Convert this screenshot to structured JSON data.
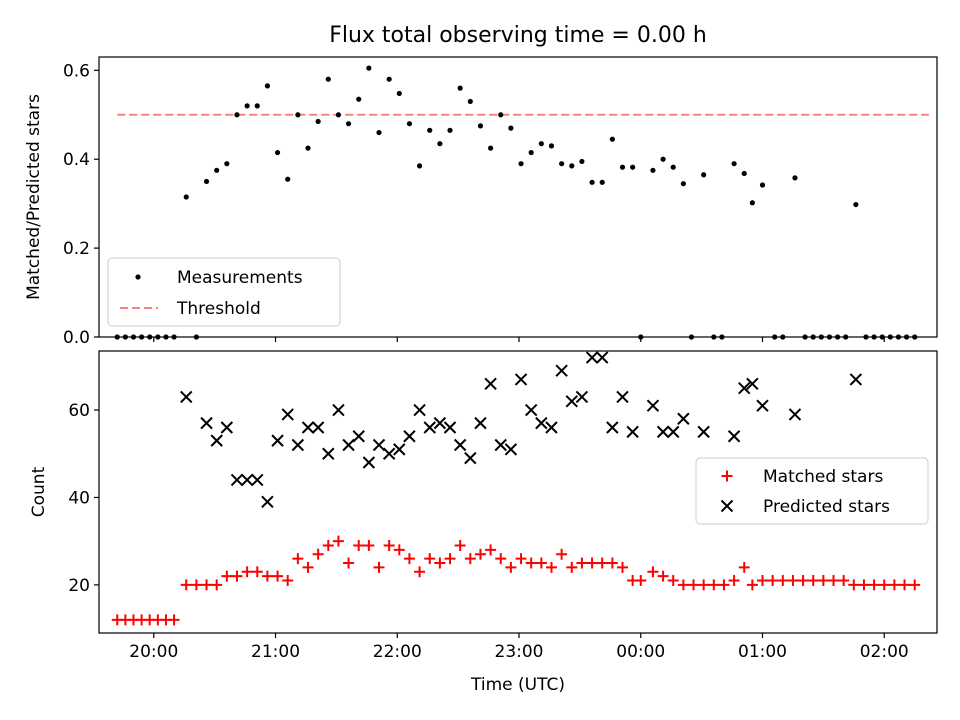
{
  "title": "Flux total observing time = 0.00 h",
  "chart_data": [
    {
      "type": "scatter",
      "ylabel": "Matched/Predicted stars",
      "ylim": [
        0,
        0.63
      ],
      "yticks": [
        0.0,
        0.2,
        0.4,
        0.6
      ],
      "ytick_labels": [
        "0.0",
        "0.2",
        "0.4",
        "0.6"
      ],
      "xlim": [
        "19:33",
        "02:26"
      ],
      "legend": {
        "position": "lower-left",
        "entries": [
          "Measurements",
          "Threshold"
        ]
      },
      "threshold": {
        "name": "Threshold",
        "value": 0.5,
        "x_range": [
          "19:42",
          "02:22"
        ],
        "color": "#ff7f7f",
        "style": "dashed"
      },
      "series": [
        {
          "name": "Measurements",
          "color": "#000000",
          "marker": "dot",
          "points": [
            [
              "19:42",
              0.0
            ],
            [
              "19:46",
              0.0
            ],
            [
              "19:50",
              0.0
            ],
            [
              "19:54",
              0.0
            ],
            [
              "19:58",
              0.0
            ],
            [
              "20:02",
              0.0
            ],
            [
              "20:06",
              0.0
            ],
            [
              "20:10",
              0.0
            ],
            [
              "20:16",
              0.315
            ],
            [
              "20:21",
              0.0
            ],
            [
              "20:26",
              0.35
            ],
            [
              "20:31",
              0.375
            ],
            [
              "20:36",
              0.39
            ],
            [
              "20:41",
              0.5
            ],
            [
              "20:46",
              0.52
            ],
            [
              "20:51",
              0.52
            ],
            [
              "20:56",
              0.565
            ],
            [
              "21:01",
              0.415
            ],
            [
              "21:06",
              0.355
            ],
            [
              "21:11",
              0.5
            ],
            [
              "21:16",
              0.425
            ],
            [
              "21:21",
              0.485
            ],
            [
              "21:26",
              0.58
            ],
            [
              "21:31",
              0.5
            ],
            [
              "21:36",
              0.48
            ],
            [
              "21:41",
              0.535
            ],
            [
              "21:46",
              0.605
            ],
            [
              "21:51",
              0.46
            ],
            [
              "21:56",
              0.58
            ],
            [
              "22:01",
              0.548
            ],
            [
              "22:06",
              0.48
            ],
            [
              "22:11",
              0.385
            ],
            [
              "22:16",
              0.465
            ],
            [
              "22:21",
              0.435
            ],
            [
              "22:26",
              0.465
            ],
            [
              "22:31",
              0.56
            ],
            [
              "22:36",
              0.53
            ],
            [
              "22:41",
              0.475
            ],
            [
              "22:46",
              0.425
            ],
            [
              "22:51",
              0.5
            ],
            [
              "22:56",
              0.47
            ],
            [
              "23:01",
              0.39
            ],
            [
              "23:06",
              0.415
            ],
            [
              "23:11",
              0.435
            ],
            [
              "23:16",
              0.43
            ],
            [
              "23:21",
              0.39
            ],
            [
              "23:26",
              0.385
            ],
            [
              "23:31",
              0.395
            ],
            [
              "23:36",
              0.348
            ],
            [
              "23:41",
              0.348
            ],
            [
              "23:46",
              0.445
            ],
            [
              "23:51",
              0.382
            ],
            [
              "23:56",
              0.382
            ],
            [
              "00:00",
              0.0
            ],
            [
              "00:06",
              0.375
            ],
            [
              "00:11",
              0.4
            ],
            [
              "00:16",
              0.382
            ],
            [
              "00:21",
              0.345
            ],
            [
              "00:25",
              0.0
            ],
            [
              "00:31",
              0.365
            ],
            [
              "00:36",
              0.0
            ],
            [
              "00:40",
              0.0
            ],
            [
              "00:46",
              0.39
            ],
            [
              "00:51",
              0.368
            ],
            [
              "00:55",
              0.302
            ],
            [
              "01:00",
              0.342
            ],
            [
              "01:06",
              0.0
            ],
            [
              "01:10",
              0.0
            ],
            [
              "01:16",
              0.358
            ],
            [
              "01:21",
              0.0
            ],
            [
              "01:25",
              0.0
            ],
            [
              "01:29",
              0.0
            ],
            [
              "01:33",
              0.0
            ],
            [
              "01:37",
              0.0
            ],
            [
              "01:41",
              0.0
            ],
            [
              "01:46",
              0.298
            ],
            [
              "01:51",
              0.0
            ],
            [
              "01:55",
              0.0
            ],
            [
              "01:59",
              0.0
            ],
            [
              "02:03",
              0.0
            ],
            [
              "02:07",
              0.0
            ],
            [
              "02:11",
              0.0
            ],
            [
              "02:15",
              0.0
            ]
          ]
        }
      ]
    },
    {
      "type": "scatter",
      "xlabel": "Time (UTC)",
      "ylabel": "Count",
      "ylim": [
        9,
        73.5
      ],
      "yticks": [
        20,
        40,
        60
      ],
      "ytick_labels": [
        "20",
        "40",
        "60"
      ],
      "xlim": [
        "19:33",
        "02:26"
      ],
      "xticks": [
        "20:00",
        "21:00",
        "22:00",
        "23:00",
        "00:00",
        "01:00",
        "02:00"
      ],
      "xtick_labels": [
        "20:00",
        "21:00",
        "22:00",
        "23:00",
        "00:00",
        "01:00",
        "02:00"
      ],
      "legend": {
        "position": "right",
        "entries": [
          "Matched stars",
          "Predicted stars"
        ]
      },
      "series": [
        {
          "name": "Matched stars",
          "color": "#ff0000",
          "marker": "plus",
          "points": [
            [
              "19:42",
              12
            ],
            [
              "19:46",
              12
            ],
            [
              "19:50",
              12
            ],
            [
              "19:54",
              12
            ],
            [
              "19:58",
              12
            ],
            [
              "20:02",
              12
            ],
            [
              "20:06",
              12
            ],
            [
              "20:10",
              12
            ],
            [
              "20:16",
              20
            ],
            [
              "20:21",
              20
            ],
            [
              "20:26",
              20
            ],
            [
              "20:31",
              20
            ],
            [
              "20:36",
              22
            ],
            [
              "20:41",
              22
            ],
            [
              "20:46",
              23
            ],
            [
              "20:51",
              23
            ],
            [
              "20:56",
              22
            ],
            [
              "21:01",
              22
            ],
            [
              "21:06",
              21
            ],
            [
              "21:11",
              26
            ],
            [
              "21:16",
              24
            ],
            [
              "21:21",
              27
            ],
            [
              "21:26",
              29
            ],
            [
              "21:31",
              30
            ],
            [
              "21:36",
              25
            ],
            [
              "21:41",
              29
            ],
            [
              "21:46",
              29
            ],
            [
              "21:51",
              24
            ],
            [
              "21:56",
              29
            ],
            [
              "22:01",
              28
            ],
            [
              "22:06",
              26
            ],
            [
              "22:11",
              23
            ],
            [
              "22:16",
              26
            ],
            [
              "22:21",
              25
            ],
            [
              "22:26",
              26
            ],
            [
              "22:31",
              29
            ],
            [
              "22:36",
              26
            ],
            [
              "22:41",
              27
            ],
            [
              "22:46",
              28
            ],
            [
              "22:51",
              26
            ],
            [
              "22:56",
              24
            ],
            [
              "23:01",
              26
            ],
            [
              "23:06",
              25
            ],
            [
              "23:11",
              25
            ],
            [
              "23:16",
              24
            ],
            [
              "23:21",
              27
            ],
            [
              "23:26",
              24
            ],
            [
              "23:31",
              25
            ],
            [
              "23:36",
              25
            ],
            [
              "23:41",
              25
            ],
            [
              "23:46",
              25
            ],
            [
              "23:51",
              24
            ],
            [
              "23:56",
              21
            ],
            [
              "00:00",
              21
            ],
            [
              "00:06",
              23
            ],
            [
              "00:11",
              22
            ],
            [
              "00:16",
              21
            ],
            [
              "00:21",
              20
            ],
            [
              "00:26",
              20
            ],
            [
              "00:31",
              20
            ],
            [
              "00:36",
              20
            ],
            [
              "00:41",
              20
            ],
            [
              "00:46",
              21
            ],
            [
              "00:51",
              24
            ],
            [
              "00:55",
              20
            ],
            [
              "01:00",
              21
            ],
            [
              "01:05",
              21
            ],
            [
              "01:10",
              21
            ],
            [
              "01:15",
              21
            ],
            [
              "01:20",
              21
            ],
            [
              "01:25",
              21
            ],
            [
              "01:30",
              21
            ],
            [
              "01:35",
              21
            ],
            [
              "01:40",
              21
            ],
            [
              "01:45",
              20
            ],
            [
              "01:50",
              20
            ],
            [
              "01:55",
              20
            ],
            [
              "02:00",
              20
            ],
            [
              "02:05",
              20
            ],
            [
              "02:10",
              20
            ],
            [
              "02:15",
              20
            ]
          ]
        },
        {
          "name": "Predicted stars",
          "color": "#000000",
          "marker": "x",
          "points": [
            [
              "20:16",
              63
            ],
            [
              "20:26",
              57
            ],
            [
              "20:31",
              53
            ],
            [
              "20:36",
              56
            ],
            [
              "20:41",
              44
            ],
            [
              "20:46",
              44
            ],
            [
              "20:51",
              44
            ],
            [
              "20:56",
              39
            ],
            [
              "21:01",
              53
            ],
            [
              "21:06",
              59
            ],
            [
              "21:11",
              52
            ],
            [
              "21:16",
              56
            ],
            [
              "21:21",
              56
            ],
            [
              "21:26",
              50
            ],
            [
              "21:31",
              60
            ],
            [
              "21:36",
              52
            ],
            [
              "21:41",
              54
            ],
            [
              "21:46",
              48
            ],
            [
              "21:51",
              52
            ],
            [
              "21:56",
              50
            ],
            [
              "22:01",
              51
            ],
            [
              "22:06",
              54
            ],
            [
              "22:11",
              60
            ],
            [
              "22:16",
              56
            ],
            [
              "22:21",
              57
            ],
            [
              "22:26",
              56
            ],
            [
              "22:31",
              52
            ],
            [
              "22:36",
              49
            ],
            [
              "22:41",
              57
            ],
            [
              "22:46",
              66
            ],
            [
              "22:51",
              52
            ],
            [
              "22:56",
              51
            ],
            [
              "23:01",
              67
            ],
            [
              "23:06",
              60
            ],
            [
              "23:11",
              57
            ],
            [
              "23:16",
              56
            ],
            [
              "23:21",
              69
            ],
            [
              "23:26",
              62
            ],
            [
              "23:31",
              63
            ],
            [
              "23:36",
              72
            ],
            [
              "23:41",
              72
            ],
            [
              "23:46",
              56
            ],
            [
              "23:51",
              63
            ],
            [
              "23:56",
              55
            ],
            [
              "00:06",
              61
            ],
            [
              "00:11",
              55
            ],
            [
              "00:16",
              55
            ],
            [
              "00:21",
              58
            ],
            [
              "00:31",
              55
            ],
            [
              "00:46",
              54
            ],
            [
              "00:51",
              65
            ],
            [
              "00:55",
              66
            ],
            [
              "01:00",
              61
            ],
            [
              "01:16",
              59
            ],
            [
              "01:46",
              67
            ]
          ]
        }
      ]
    }
  ]
}
